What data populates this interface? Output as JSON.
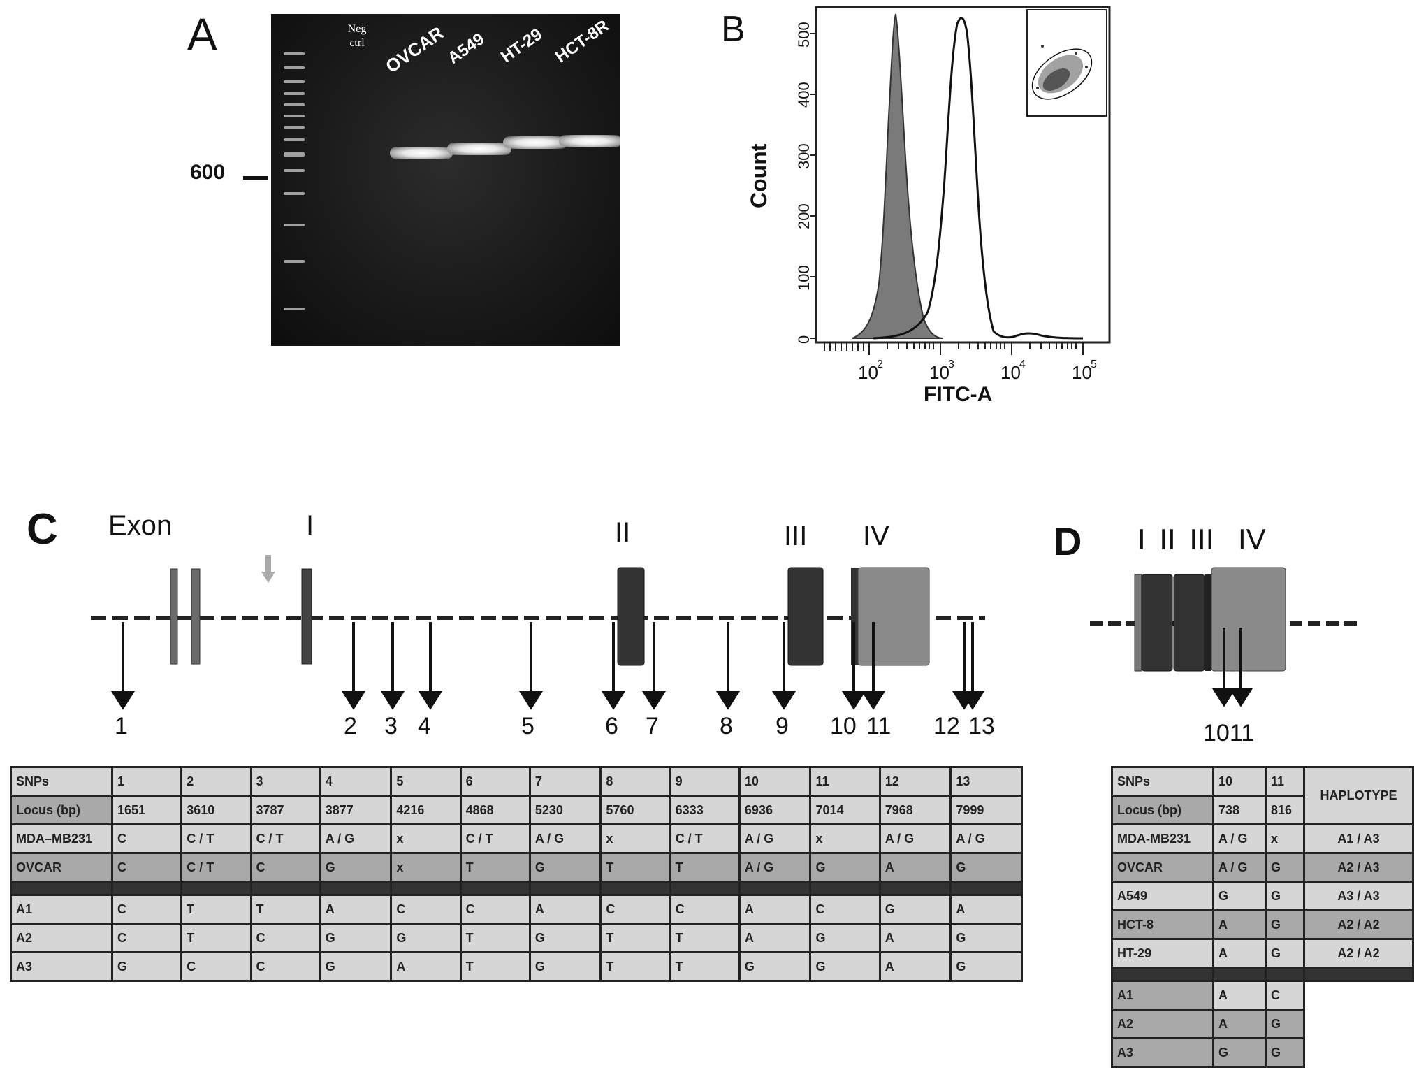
{
  "panels": {
    "a": "A",
    "b": "B",
    "c": "C",
    "d": "D"
  },
  "panel_a": {
    "lanes": [
      "Neg ctrl",
      "OVCAR",
      "A549",
      "HT-29",
      "HCT-8R"
    ],
    "marker_label": "600"
  },
  "panel_b": {
    "y_label": "Count",
    "x_label": "FITC-A",
    "y_ticks": [
      "0",
      "100",
      "200",
      "300",
      "400",
      "500"
    ],
    "x_ticks": [
      "10",
      "10",
      "10",
      "10"
    ],
    "x_tick_exponents": [
      "2",
      "3",
      "4",
      "5"
    ]
  },
  "panel_c": {
    "exon_label": "Exon",
    "exons": [
      "I",
      "II",
      "III",
      "IV"
    ],
    "snp_numbers": [
      "1",
      "2",
      "3",
      "4",
      "5",
      "6",
      "7",
      "8",
      "9",
      "10",
      "11",
      "12",
      "13"
    ],
    "table": {
      "header_label": "SNPs",
      "snps": [
        "1",
        "2",
        "3",
        "4",
        "5",
        "6",
        "7",
        "8",
        "9",
        "10",
        "11",
        "12",
        "13"
      ],
      "locus_label": "Locus (bp)",
      "locus": [
        "1651",
        "3610",
        "3787",
        "3877",
        "4216",
        "4868",
        "5230",
        "5760",
        "6333",
        "6936",
        "7014",
        "7968",
        "7999"
      ],
      "rows": [
        {
          "name": "MDA–MB231",
          "values": [
            "C",
            "C / T",
            "C / T",
            "A / G",
            "x",
            "C / T",
            "A / G",
            "x",
            "C / T",
            "A / G",
            "x",
            "A / G",
            "A / G"
          ]
        },
        {
          "name": "OVCAR",
          "values": [
            "C",
            "C / T",
            "C",
            "G",
            "x",
            "T",
            "G",
            "T",
            "T",
            "A / G",
            "G",
            "A",
            "G"
          ]
        }
      ],
      "haplotypes": [
        {
          "name": "A1",
          "values": [
            "C",
            "T",
            "T",
            "A",
            "C",
            "C",
            "A",
            "C",
            "C",
            "A",
            "C",
            "G",
            "A"
          ]
        },
        {
          "name": "A2",
          "values": [
            "C",
            "T",
            "C",
            "G",
            "G",
            "T",
            "G",
            "T",
            "T",
            "A",
            "G",
            "A",
            "G"
          ]
        },
        {
          "name": "A3",
          "values": [
            "G",
            "C",
            "C",
            "G",
            "A",
            "T",
            "G",
            "T",
            "T",
            "G",
            "G",
            "A",
            "G"
          ]
        }
      ]
    }
  },
  "panel_d": {
    "exons": [
      "I",
      "II",
      "III",
      "IV"
    ],
    "snp_numbers": [
      "10",
      "11"
    ],
    "table": {
      "header_label": "SNPs",
      "snps": [
        "10",
        "11"
      ],
      "locus_label": "Locus (bp)",
      "locus": [
        "738",
        "816"
      ],
      "haplotype_header": "HAPLOTYPE",
      "rows": [
        {
          "name": "MDA-MB231",
          "values": [
            "A / G",
            "x"
          ],
          "haplotype": "A1 / A3"
        },
        {
          "name": "OVCAR",
          "values": [
            "A / G",
            "G"
          ],
          "haplotype": "A2 / A3"
        },
        {
          "name": "A549",
          "values": [
            "G",
            "G"
          ],
          "haplotype": "A3 / A3"
        },
        {
          "name": "HCT-8",
          "values": [
            "A",
            "G"
          ],
          "haplotype": "A2 / A2"
        },
        {
          "name": "HT-29",
          "values": [
            "A",
            "G"
          ],
          "haplotype": "A2 / A2"
        }
      ],
      "haplotypes": [
        {
          "name": "A1",
          "values": [
            "A",
            "C"
          ]
        },
        {
          "name": "A2",
          "values": [
            "A",
            "G"
          ]
        },
        {
          "name": "A3",
          "values": [
            "G",
            "G"
          ]
        }
      ]
    }
  }
}
